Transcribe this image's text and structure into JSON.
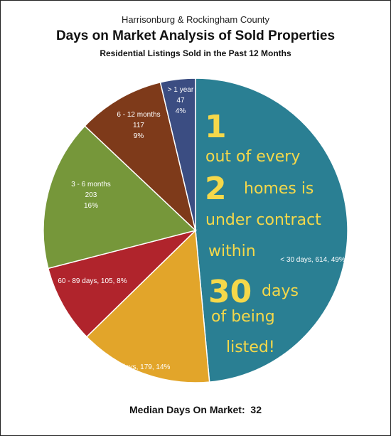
{
  "header": {
    "supertitle": "Harrisonburg & Rockingham County",
    "title": "Days on Market Analysis of Sold Properties",
    "subtitle": "Residential Listings Sold in the Past 12 Months"
  },
  "footer": {
    "label": "Median Days On Market:",
    "value": "32"
  },
  "annotation": {
    "lines": [
      "1",
      "out of every",
      "2",
      "homes is",
      "under contract",
      "within",
      "30",
      "days",
      "of being",
      "listed!"
    ]
  },
  "chart_data": {
    "type": "pie",
    "start": "12 o'clock",
    "direction": "clockwise",
    "slices": [
      {
        "category": "< 30 days",
        "count": 614,
        "percent": "49%",
        "color": "#2a7f93",
        "label_lines": [
          "< 30 days, 614, 49%"
        ]
      },
      {
        "category": "30 - 59 days",
        "count": 179,
        "percent": "14%",
        "color": "#e2a52a",
        "label_lines": [
          "30 - 59 days, 179, 14%"
        ]
      },
      {
        "category": "60 - 89 days",
        "count": 105,
        "percent": "8%",
        "color": "#b0242c",
        "label_lines": [
          "60 - 89 days, 105, 8%"
        ]
      },
      {
        "category": "3 - 6 months",
        "count": 203,
        "percent": "16%",
        "color": "#76973a",
        "label_lines": [
          "3 - 6 months",
          "203",
          "16%"
        ]
      },
      {
        "category": "6 - 12 months",
        "count": 117,
        "percent": "9%",
        "color": "#7e3a1a",
        "label_lines": [
          "6 - 12 months",
          "117",
          "9%"
        ]
      },
      {
        "category": "> 1 year",
        "count": 47,
        "percent": "4%",
        "color": "#3b4d82",
        "label_lines": [
          "> 1 year",
          "47",
          "4%"
        ]
      }
    ]
  }
}
